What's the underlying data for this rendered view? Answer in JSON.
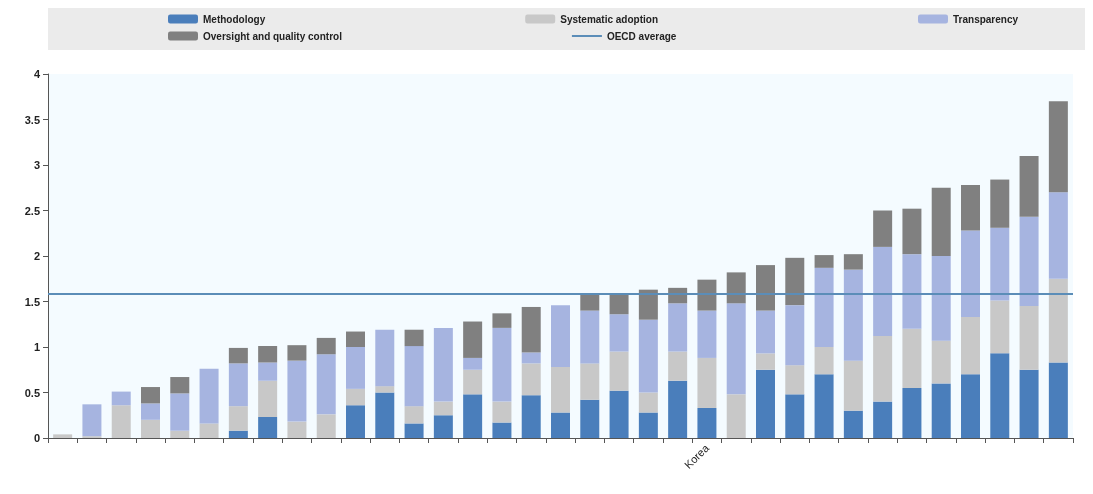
{
  "chart_data": {
    "type": "bar",
    "stacked": true,
    "categories": [
      null,
      null,
      null,
      null,
      null,
      null,
      null,
      null,
      null,
      null,
      null,
      null,
      null,
      null,
      null,
      null,
      null,
      null,
      null,
      null,
      null,
      null,
      "Korea",
      null,
      null,
      null,
      null,
      null,
      null,
      null,
      null,
      null,
      null,
      null,
      null
    ],
    "series": [
      {
        "name": "Methodology",
        "color": "#4a7ebb",
        "values": [
          0,
          0,
          0,
          0,
          0,
          0,
          0.08,
          0.23,
          0,
          0,
          0.36,
          0.5,
          0.16,
          0.25,
          0.48,
          0.17,
          0.47,
          0.28,
          0.42,
          0.52,
          0.28,
          0.63,
          0.33,
          0,
          0.75,
          0.48,
          0.7,
          0.3,
          0.4,
          0.55,
          0.6,
          0.7,
          0.93,
          0.75,
          0.83
        ]
      },
      {
        "name": "Systematic adoption",
        "color": "#c8c8c8",
        "values": [
          0.04,
          0.02,
          0.36,
          0.2,
          0.08,
          0.16,
          0.27,
          0.4,
          0.18,
          0.26,
          0.18,
          0.07,
          0.19,
          0.15,
          0.27,
          0.23,
          0.35,
          0.5,
          0.4,
          0.43,
          0.22,
          0.32,
          0.55,
          0.48,
          0.18,
          0.32,
          0.3,
          0.55,
          0.72,
          0.65,
          0.47,
          0.63,
          0.58,
          0.7,
          0.92
        ]
      },
      {
        "name": "Transparency",
        "color": "#a6b4e0",
        "values": [
          0,
          0.35,
          0.15,
          0.18,
          0.41,
          0.6,
          0.47,
          0.2,
          0.67,
          0.66,
          0.46,
          0.62,
          0.66,
          0.81,
          0.13,
          0.81,
          0.12,
          0.68,
          0.58,
          0.41,
          0.8,
          0.53,
          0.52,
          1.0,
          0.47,
          0.66,
          0.87,
          1.0,
          0.98,
          0.82,
          0.93,
          0.95,
          0.8,
          0.98,
          0.95
        ]
      },
      {
        "name": "Oversight and quality control",
        "color": "#808080",
        "values": [
          0,
          0,
          0,
          0.18,
          0.18,
          0,
          0.17,
          0.18,
          0.17,
          0.18,
          0.17,
          0,
          0.18,
          0,
          0.4,
          0.16,
          0.5,
          0,
          0.18,
          0.22,
          0.33,
          0.17,
          0.34,
          0.34,
          0.5,
          0.52,
          0.14,
          0.17,
          0.4,
          0.5,
          0.75,
          0.5,
          0.53,
          0.67,
          1.0
        ]
      }
    ],
    "ref_lines": [
      {
        "axis": "y",
        "value": 1.58,
        "label": "OECD average",
        "color": "#5b8db8"
      }
    ],
    "ylim": [
      0,
      4
    ],
    "yticks": [
      0,
      0.5,
      1,
      1.5,
      2,
      2.5,
      3,
      3.5,
      4
    ],
    "grid": false,
    "legend": "top"
  }
}
